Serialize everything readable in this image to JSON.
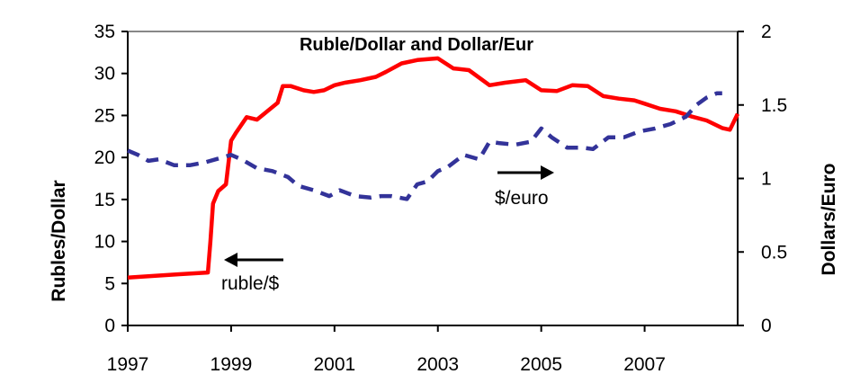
{
  "chart_data": {
    "type": "line",
    "title": "Ruble/Dollar and Dollar/Eur",
    "ylabel": "Rubles/Dollar",
    "y2label": "Dollars/Euro",
    "x_ticks": [
      "1997",
      "1999",
      "2001",
      "2003",
      "2005",
      "2007"
    ],
    "ylim": [
      0,
      35
    ],
    "y_ticks": [
      "0",
      "5",
      "10",
      "15",
      "20",
      "25",
      "30",
      "35"
    ],
    "y2lim": [
      0,
      2
    ],
    "y2_ticks": [
      "0",
      "0.5",
      "1",
      "1.5",
      "2"
    ],
    "xlim": [
      1997,
      2008.8
    ],
    "grid": false,
    "legend": "none",
    "colors": {
      "ruble": "#ff0000",
      "euro": "#333399"
    },
    "annotations": [
      {
        "text": "ruble/$",
        "arrow": "left"
      },
      {
        "text": "$/euro",
        "arrow": "right"
      }
    ],
    "series": [
      {
        "axis": "left",
        "style": "solid",
        "x": [
          1997.0,
          1997.5,
          1998.0,
          1998.55,
          1998.6,
          1998.65,
          1998.75,
          1998.9,
          1999.0,
          1999.1,
          1999.3,
          1999.5,
          1999.7,
          1999.9,
          2000.0,
          2000.15,
          2000.4,
          2000.6,
          2000.8,
          2001.0,
          2001.2,
          2001.5,
          2001.8,
          2002.0,
          2002.3,
          2002.6,
          2003.0,
          2003.3,
          2003.6,
          2004.0,
          2004.3,
          2004.7,
          2005.0,
          2005.3,
          2005.6,
          2005.9,
          2006.2,
          2006.5,
          2006.8,
          2007.0,
          2007.3,
          2007.6,
          2007.9,
          2008.2,
          2008.5,
          2008.65,
          2008.8
        ],
        "values": [
          5.7,
          5.9,
          6.1,
          6.3,
          10.0,
          14.5,
          16.0,
          16.8,
          22.0,
          23.0,
          24.8,
          24.5,
          25.5,
          26.5,
          28.5,
          28.5,
          28.0,
          27.8,
          28.0,
          28.6,
          28.9,
          29.2,
          29.6,
          30.2,
          31.2,
          31.6,
          31.8,
          30.6,
          30.4,
          28.6,
          28.9,
          29.2,
          28.0,
          27.9,
          28.6,
          28.5,
          27.3,
          27.0,
          26.8,
          26.4,
          25.8,
          25.5,
          24.9,
          24.4,
          23.5,
          23.3,
          25.2
        ]
      },
      {
        "axis": "right",
        "style": "dashed",
        "x": [
          1997.0,
          1997.2,
          1997.4,
          1997.6,
          1997.9,
          1998.2,
          1998.5,
          1998.8,
          1999.0,
          1999.2,
          1999.5,
          1999.8,
          2000.1,
          2000.3,
          2000.6,
          2000.9,
          2001.1,
          2001.4,
          2001.7,
          2001.9,
          2002.1,
          2002.4,
          2002.6,
          2002.8,
          2003.0,
          2003.2,
          2003.5,
          2003.8,
          2004.0,
          2004.2,
          2004.5,
          2004.8,
          2005.0,
          2005.2,
          2005.5,
          2005.8,
          2006.0,
          2006.3,
          2006.6,
          2006.9,
          2007.2,
          2007.5,
          2007.8,
          2008.0,
          2008.2,
          2008.4,
          2008.5
        ],
        "values": [
          1.19,
          1.16,
          1.12,
          1.13,
          1.09,
          1.09,
          1.11,
          1.14,
          1.16,
          1.13,
          1.07,
          1.05,
          1.01,
          0.95,
          0.92,
          0.88,
          0.92,
          0.88,
          0.87,
          0.88,
          0.88,
          0.86,
          0.96,
          0.98,
          1.05,
          1.08,
          1.16,
          1.13,
          1.25,
          1.24,
          1.23,
          1.25,
          1.34,
          1.28,
          1.21,
          1.21,
          1.2,
          1.28,
          1.28,
          1.32,
          1.34,
          1.37,
          1.42,
          1.5,
          1.55,
          1.58,
          1.58
        ]
      }
    ]
  }
}
